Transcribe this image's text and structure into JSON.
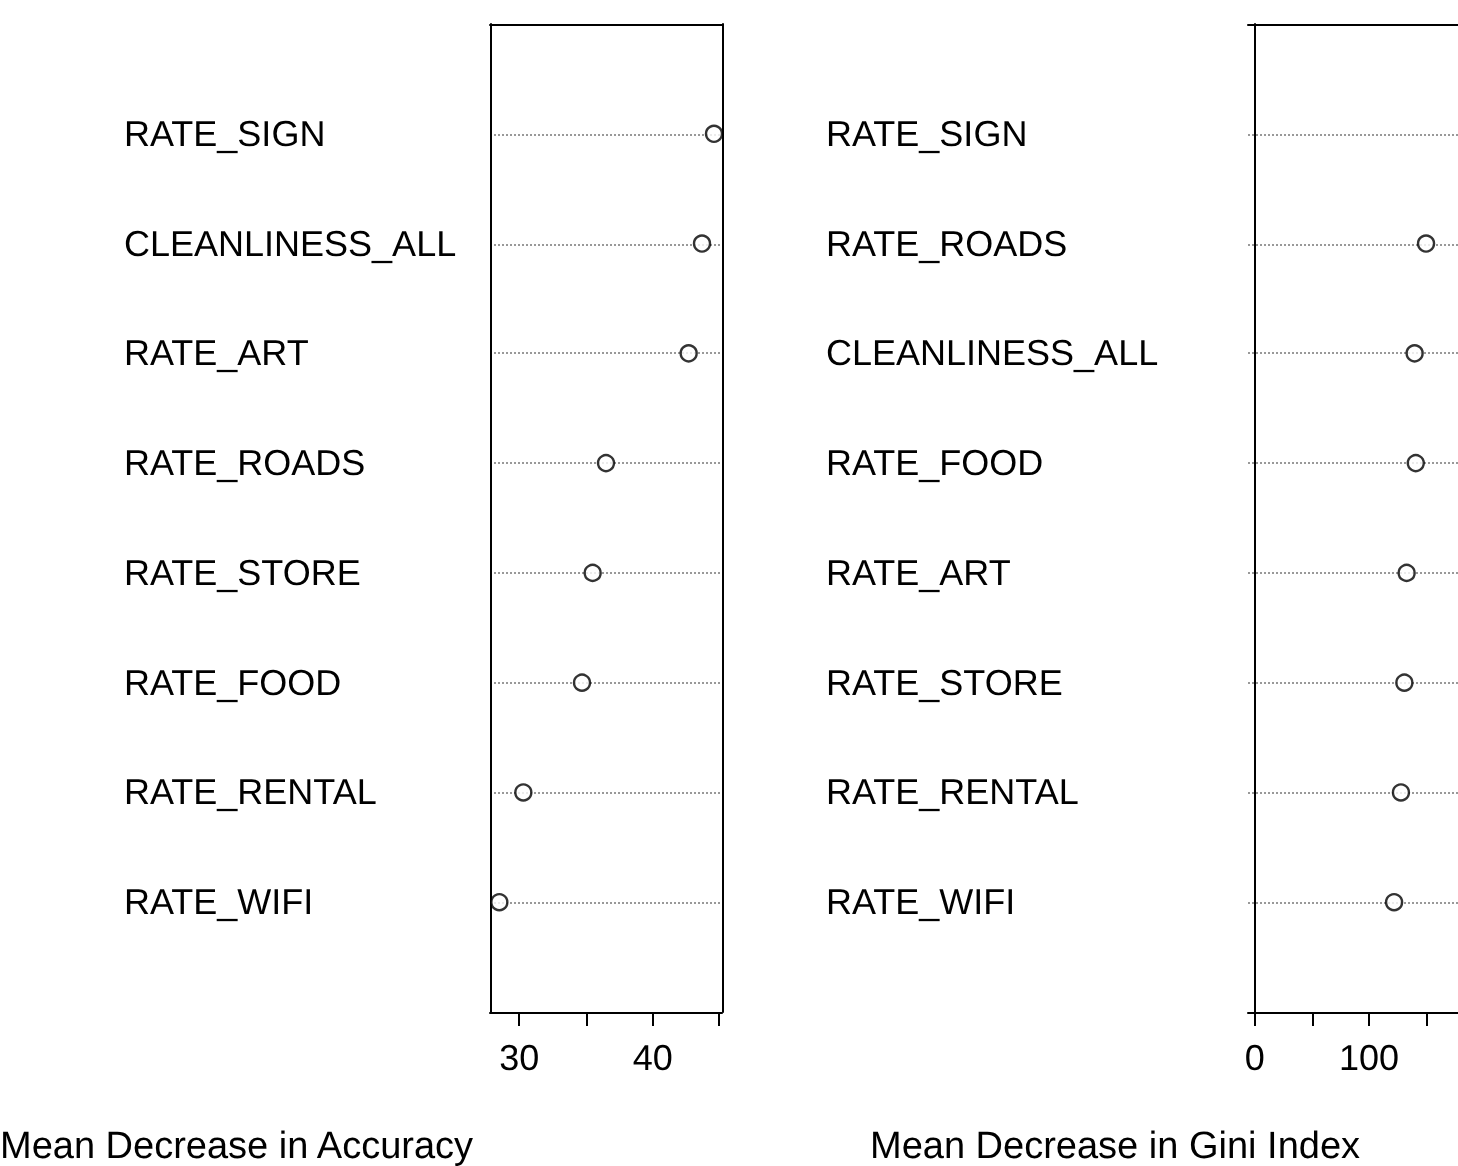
{
  "chart_data": [
    {
      "type": "scatter",
      "categories": [
        "RATE_SIGN",
        "CLEANLINESS_ALL",
        "RATE_ART",
        "RATE_ROADS",
        "RATE_STORE",
        "RATE_FOOD",
        "RATE_RENTAL",
        "RATE_WIFI"
      ],
      "xlabel": "Mean Decrease in Accuracy",
      "series": [
        {
          "color": "#000000",
          "values": [
            44.6,
            43.7,
            42.7,
            36.5,
            35.5,
            34.7,
            30.3,
            28.5
          ]
        }
      ],
      "xlim": [
        27.8,
        45.2
      ],
      "xticks": [
        30,
        {
          "value": 35,
          "label": null
        },
        40,
        {
          "value": 45,
          "label": null
        }
      ],
      "grid": "y",
      "marker": "circle",
      "orientation": "horizontal"
    },
    {
      "type": "scatter",
      "categories": [
        "RATE_SIGN",
        "RATE_ROADS",
        "CLEANLINESS_ALL",
        "RATE_FOOD",
        "RATE_ART",
        "RATE_STORE",
        "RATE_RENTAL",
        "RATE_WIFI"
      ],
      "xlabel": "Mean Decrease in Gini Index",
      "series": [
        {
          "color": "#000000",
          "values": [
            null,
            150,
            140,
            141,
            133,
            131,
            128,
            122
          ]
        }
      ],
      "xlim": [
        -6,
        178
      ],
      "xticks": [
        0,
        {
          "value": 50,
          "label": null
        },
        100,
        {
          "value": 150,
          "label": null
        }
      ],
      "grid": "y",
      "marker": "circle",
      "orientation": "horizontal"
    }
  ]
}
